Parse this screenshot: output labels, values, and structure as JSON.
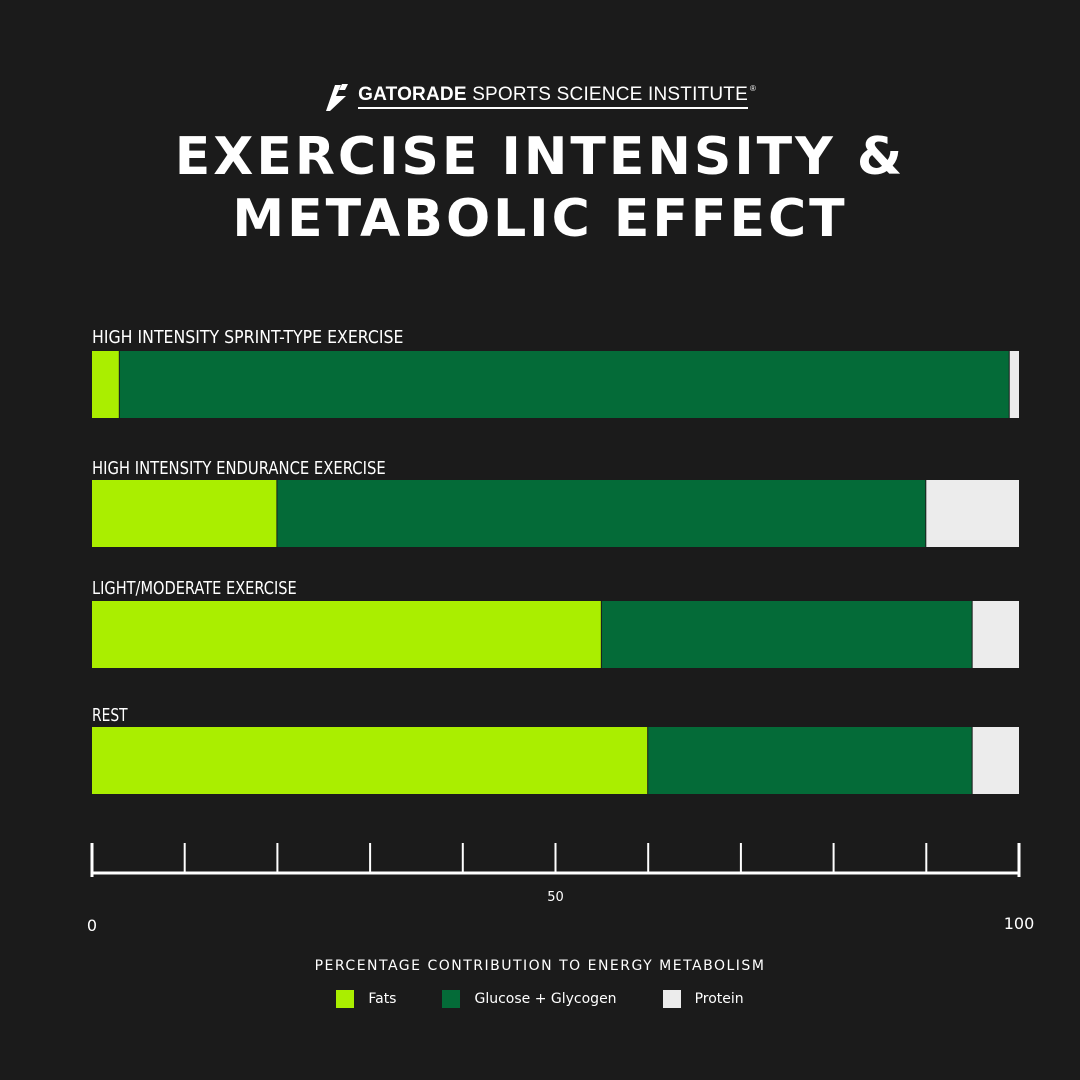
{
  "brand": {
    "name_bold": "GATORADE",
    "name_rest": "SPORTS SCIENCE INSTITUTE",
    "registered": "®",
    "logo_icon": "bolt-icon"
  },
  "title": {
    "line1": "EXERCISE INTENSITY &",
    "line2": "METABOLIC EFFECT"
  },
  "colors": {
    "background": "#1b1b1b",
    "fats": "#aaee00",
    "glucose": "#046b38",
    "protein": "#ececec",
    "axis": "#ffffff"
  },
  "chart_data": {
    "type": "bar",
    "orientation": "horizontal",
    "stacked": true,
    "categories": [
      "HIGH INTENSITY SPRINT-TYPE EXERCISE",
      "HIGH INTENSITY ENDURANCE EXERCISE",
      "LIGHT/MODERATE EXERCISE",
      "REST"
    ],
    "series": [
      {
        "name": "Fats",
        "color": "#aaee00",
        "values": [
          3,
          20,
          55,
          60
        ]
      },
      {
        "name": "Glucose + Glycogen",
        "color": "#046b38",
        "values": [
          96,
          70,
          40,
          35
        ]
      },
      {
        "name": "Protein",
        "color": "#ececec",
        "values": [
          1,
          10,
          5,
          5
        ]
      }
    ],
    "xlim": [
      0,
      100
    ],
    "x_tick_count": 11,
    "x_tick_labels": [
      "0",
      "50",
      "100"
    ],
    "xlabel": "PERCENTAGE CONTRIBUTION TO ENERGY METABOLISM",
    "legend_position": "bottom-center",
    "grid": false
  }
}
